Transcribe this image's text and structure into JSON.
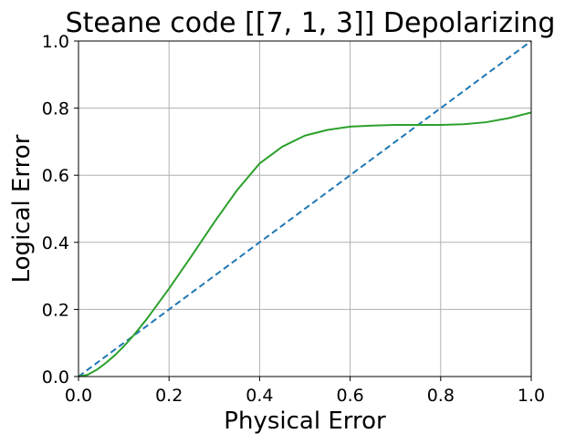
{
  "chart_data": {
    "type": "line",
    "title": "Steane code [[7, 1, 3]] Depolarizing",
    "xlabel": "Physical Error",
    "ylabel": "Logical Error",
    "xlim": [
      0.0,
      1.0
    ],
    "ylim": [
      0.0,
      1.0
    ],
    "xticks": [
      "0.0",
      "0.2",
      "0.4",
      "0.6",
      "0.8",
      "1.0"
    ],
    "yticks": [
      "0.0",
      "0.2",
      "0.4",
      "0.6",
      "0.8",
      "1.0"
    ],
    "grid": true,
    "series": [
      {
        "color": "#1f77b4",
        "style": "dashed",
        "x": [
          0.0,
          1.0
        ],
        "y": [
          0.0,
          1.0
        ]
      },
      {
        "color": "#2ca02c",
        "style": "solid",
        "x": [
          0.0,
          0.02,
          0.04,
          0.06,
          0.08,
          0.1,
          0.12,
          0.15,
          0.2,
          0.25,
          0.3,
          0.35,
          0.4,
          0.45,
          0.5,
          0.55,
          0.6,
          0.65,
          0.7,
          0.75,
          0.8,
          0.85,
          0.9,
          0.95,
          1.0
        ],
        "y": [
          0.0,
          0.005,
          0.02,
          0.04,
          0.063,
          0.09,
          0.12,
          0.17,
          0.262,
          0.36,
          0.46,
          0.555,
          0.635,
          0.685,
          0.718,
          0.735,
          0.745,
          0.748,
          0.75,
          0.75,
          0.75,
          0.752,
          0.758,
          0.77,
          0.787
        ]
      }
    ]
  }
}
